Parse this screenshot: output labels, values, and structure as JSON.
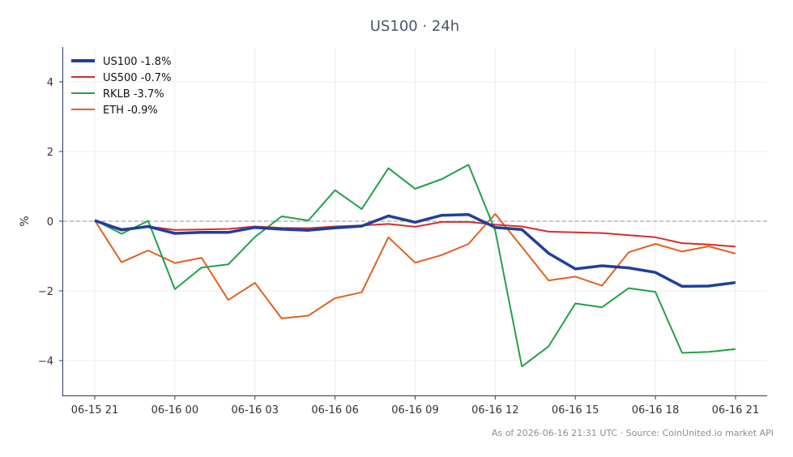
{
  "chart_data": {
    "type": "line",
    "title": "US100 · 24h",
    "ylabel": "%",
    "xlabel": "",
    "ylim": [
      -5,
      5
    ],
    "yticks": [
      -4,
      -2,
      0,
      2,
      4
    ],
    "ytick_labels": [
      "−4",
      "−2",
      "0",
      "2",
      "4"
    ],
    "xtick_labels": [
      "06-15 21",
      "06-16 00",
      "06-16 03",
      "06-16 06",
      "06-16 09",
      "06-16 12",
      "06-16 15",
      "06-16 18",
      "06-16 21"
    ],
    "x": [
      "06-15 21",
      "06-15 22",
      "06-15 23",
      "06-16 00",
      "06-16 01",
      "06-16 02",
      "06-16 03",
      "06-16 04",
      "06-16 05",
      "06-16 06",
      "06-16 07",
      "06-16 08",
      "06-16 09",
      "06-16 10",
      "06-16 11",
      "06-16 12",
      "06-16 13",
      "06-16 14",
      "06-16 15",
      "06-16 16",
      "06-16 17",
      "06-16 18",
      "06-16 19",
      "06-16 20",
      "06-16 21"
    ],
    "grid": true,
    "zero_line": true,
    "legend_position": "top-left",
    "series": [
      {
        "name": "US100 -1.8%",
        "color": "#1f3f9a",
        "values": [
          0.02,
          -0.25,
          -0.15,
          -0.35,
          -0.32,
          -0.32,
          -0.18,
          -0.23,
          -0.26,
          -0.19,
          -0.14,
          0.15,
          -0.03,
          0.17,
          0.19,
          -0.18,
          -0.24,
          -0.92,
          -1.37,
          -1.28,
          -1.34,
          -1.47,
          -1.87,
          -1.86,
          -1.76
        ]
      },
      {
        "name": "US500 -0.7%",
        "color": "#d12f2f",
        "values": [
          0.02,
          -0.22,
          -0.15,
          -0.25,
          -0.24,
          -0.22,
          -0.15,
          -0.19,
          -0.2,
          -0.15,
          -0.12,
          -0.08,
          -0.16,
          -0.02,
          -0.02,
          -0.1,
          -0.15,
          -0.3,
          -0.32,
          -0.34,
          -0.4,
          -0.46,
          -0.63,
          -0.67,
          -0.73
        ]
      },
      {
        "name": "RKLB -3.7%",
        "color": "#22a04a",
        "values": [
          0.03,
          -0.36,
          0.01,
          -1.95,
          -1.33,
          -1.24,
          -0.45,
          0.14,
          0.02,
          0.89,
          0.35,
          1.52,
          0.93,
          1.21,
          1.62,
          -0.27,
          -4.17,
          -3.59,
          -2.36,
          -2.47,
          -1.92,
          -2.03,
          -3.78,
          -3.75,
          -3.67
        ]
      },
      {
        "name": "ETH -0.9%",
        "color": "#e0611f",
        "values": [
          0.02,
          -1.18,
          -0.84,
          -1.2,
          -1.05,
          -2.26,
          -1.77,
          -2.79,
          -2.71,
          -2.21,
          -2.04,
          -0.46,
          -1.19,
          -0.97,
          -0.65,
          0.21,
          -0.74,
          -1.7,
          -1.59,
          -1.85,
          -0.89,
          -0.65,
          -0.87,
          -0.72,
          -0.93
        ]
      }
    ]
  },
  "footer": "As of 2026-06-16 21:31 UTC · Source: CoinUnited.io market API"
}
